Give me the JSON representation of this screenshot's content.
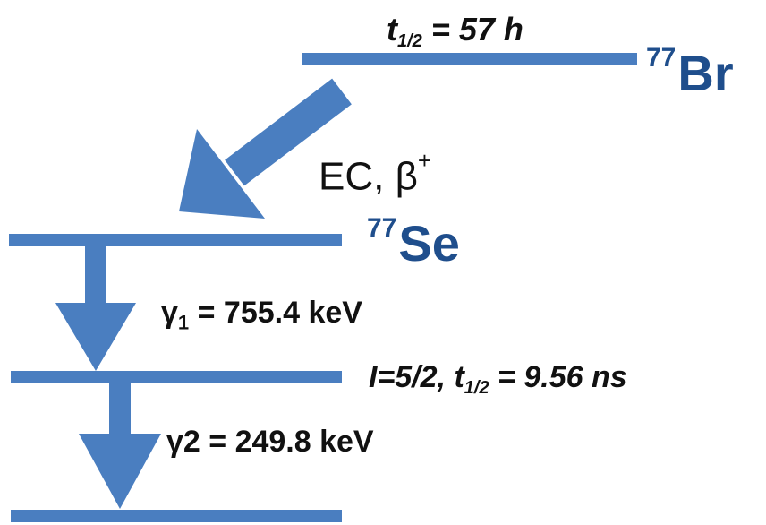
{
  "parent": {
    "mass_number": "77",
    "symbol": "Br",
    "halflife_var": "t",
    "halflife_sub": "1/2",
    "halflife_value": " = 57 h"
  },
  "decay_mode": {
    "text": "EC, β",
    "superscript": "+"
  },
  "daughter": {
    "mass_number": "77",
    "symbol": "Se"
  },
  "gamma1": {
    "symbol": "γ",
    "subscript": "1",
    "value": " = 755.4 keV"
  },
  "gamma2": {
    "label": "γ2 = 249.8 keV"
  },
  "intermediate_level": {
    "spin": "I=5/2, ",
    "halflife_var": "t",
    "halflife_sub": "1/2",
    "halflife_value": " = 9.56 ns"
  },
  "colors": {
    "line": "#4a7ec0",
    "nuclide": "#1f4e8c",
    "text": "#111111"
  }
}
